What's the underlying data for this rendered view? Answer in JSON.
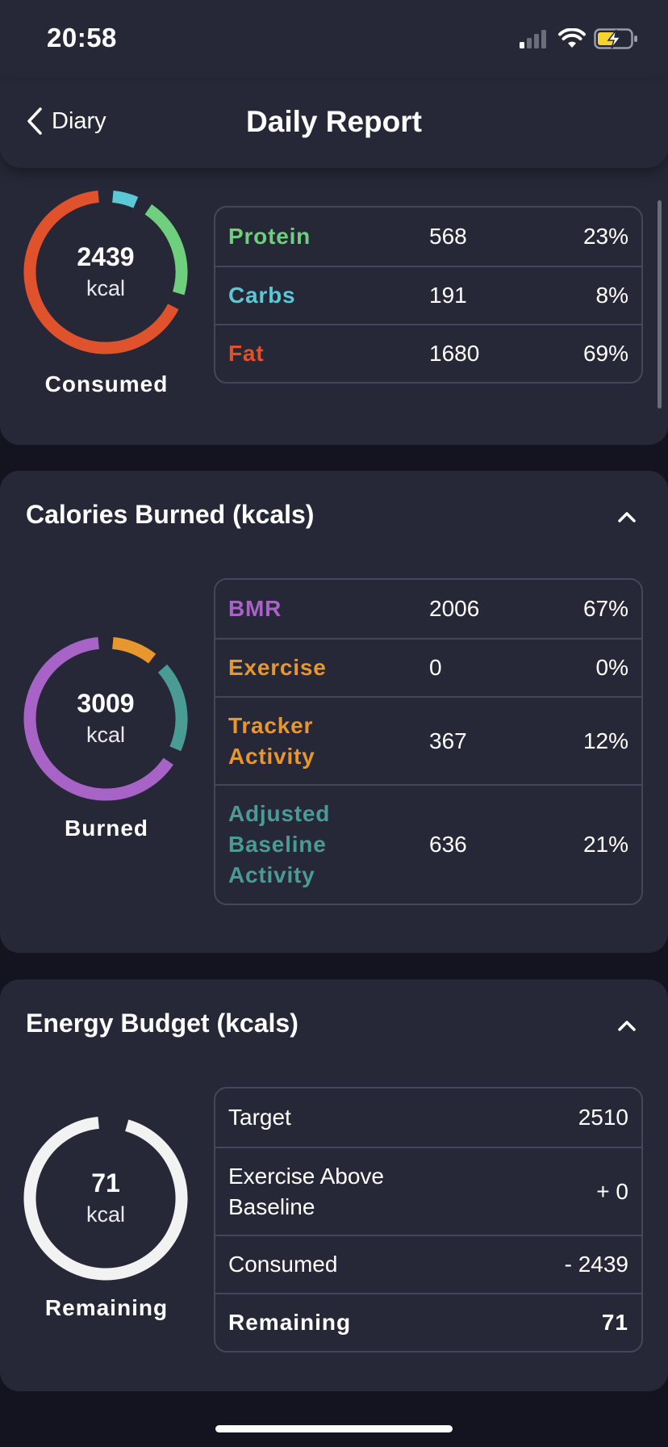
{
  "status_bar": {
    "time": "20:58",
    "icons": [
      "signal-icon",
      "wifi-icon",
      "battery-charging-icon"
    ]
  },
  "nav": {
    "back_label": "Diary",
    "title": "Daily Report"
  },
  "consumed": {
    "value": "2439",
    "unit": "kcal",
    "caption": "Consumed",
    "rows": [
      {
        "name": "Protein",
        "kcal": "568",
        "pct": "23%",
        "color": "#6fcf7f",
        "fraction": 0.23
      },
      {
        "name": "Carbs",
        "kcal": "191",
        "pct": "8%",
        "color": "#5bc8d6",
        "fraction": 0.08
      },
      {
        "name": "Fat",
        "kcal": "1680",
        "pct": "69%",
        "color": "#e0522b",
        "fraction": 0.69
      }
    ]
  },
  "burned": {
    "header": "Calories Burned (kcals)",
    "value": "3009",
    "unit": "kcal",
    "caption": "Burned",
    "rows": [
      {
        "name": "BMR",
        "kcal": "2006",
        "pct": "67%",
        "color": "#a863c7",
        "fraction": 0.67
      },
      {
        "name": "Exercise",
        "kcal": "0",
        "pct": "0%",
        "color": "#e8962e",
        "fraction": 0.0
      },
      {
        "name": "Tracker Activity",
        "kcal": "367",
        "pct": "12%",
        "color": "#e8962e",
        "fraction": 0.12
      },
      {
        "name": "Adjusted Baseline Activity",
        "kcal": "636",
        "pct": "21%",
        "color": "#4a9b94",
        "fraction": 0.21
      }
    ]
  },
  "budget": {
    "header": "Energy Budget (kcals)",
    "value": "71",
    "unit": "kcal",
    "caption": "Remaining",
    "rows": [
      {
        "name": "Target",
        "value": "2510"
      },
      {
        "name": "Exercise Above Baseline",
        "value": "+ 0"
      },
      {
        "name": "Consumed",
        "value": "- 2439"
      },
      {
        "name": "Remaining",
        "value": "71"
      }
    ],
    "ring_color": "#f2f2f2",
    "remaining_fraction": 0.97
  },
  "colors": {
    "background": "#13141f",
    "card": "#262837",
    "border": "#44475a"
  }
}
